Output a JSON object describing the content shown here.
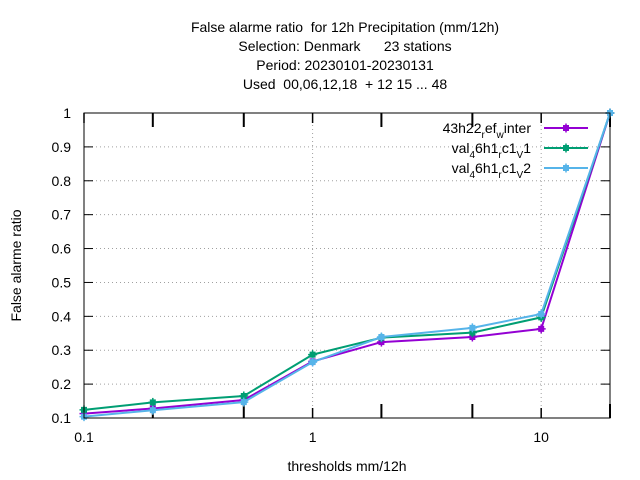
{
  "chart_data": {
    "type": "line",
    "title_lines": [
      "False alarme ratio  for 12h Precipitation (mm/12h)",
      "Selection: Denmark      23 stations",
      "Period: 20230101-20230131",
      "Used  00,06,12,18  + 12 15 ... 48"
    ],
    "xlabel": "thresholds mm/12h",
    "ylabel": "False alarme ratio",
    "xscale": "log",
    "xlim": [
      0.1,
      20
    ],
    "ylim": [
      0.1,
      1.0
    ],
    "x_ticks": [
      {
        "value": 0.1,
        "label": "0.1"
      },
      {
        "value": 1,
        "label": "1"
      },
      {
        "value": 10,
        "label": "10"
      }
    ],
    "x_minor_ticks": [
      0.2,
      0.5,
      2,
      5,
      20
    ],
    "y_ticks": [
      {
        "value": 0.1,
        "label": "0.1"
      },
      {
        "value": 0.2,
        "label": "0.2"
      },
      {
        "value": 0.3,
        "label": "0.3"
      },
      {
        "value": 0.4,
        "label": "0.4"
      },
      {
        "value": 0.5,
        "label": "0.5"
      },
      {
        "value": 0.6,
        "label": "0.6"
      },
      {
        "value": 0.7,
        "label": "0.7"
      },
      {
        "value": 0.8,
        "label": "0.8"
      },
      {
        "value": 0.9,
        "label": "0.9"
      },
      {
        "value": 1.0,
        "label": "1"
      }
    ],
    "grid": true,
    "legend_position": "top-right",
    "x": [
      0.1,
      0.2,
      0.5,
      1,
      2,
      5,
      10,
      20
    ],
    "series": [
      {
        "name_parts": [
          [
            "43h22",
            "base"
          ],
          [
            "r",
            "sub"
          ],
          [
            "ef",
            "base"
          ],
          [
            "w",
            "sub"
          ],
          [
            "inter",
            "base"
          ]
        ],
        "color": "#9400d3",
        "values": [
          0.113,
          0.128,
          0.153,
          0.267,
          0.324,
          0.339,
          0.363,
          1.0
        ]
      },
      {
        "name_parts": [
          [
            "val",
            "base"
          ],
          [
            "4",
            "sub"
          ],
          [
            "6h1",
            "base"
          ],
          [
            "r",
            "sub"
          ],
          [
            "c1",
            "base"
          ],
          [
            "V",
            "sub"
          ],
          [
            "1",
            "base"
          ]
        ],
        "color": "#009e73",
        "values": [
          0.124,
          0.146,
          0.165,
          0.287,
          0.337,
          0.352,
          0.397,
          1.0
        ]
      },
      {
        "name_parts": [
          [
            "val",
            "base"
          ],
          [
            "4",
            "sub"
          ],
          [
            "6h1",
            "base"
          ],
          [
            "r",
            "sub"
          ],
          [
            "c1",
            "base"
          ],
          [
            "V",
            "sub"
          ],
          [
            "2",
            "base"
          ]
        ],
        "color": "#56b4e9",
        "values": [
          0.104,
          0.123,
          0.147,
          0.265,
          0.339,
          0.366,
          0.407,
          1.0
        ]
      }
    ]
  }
}
